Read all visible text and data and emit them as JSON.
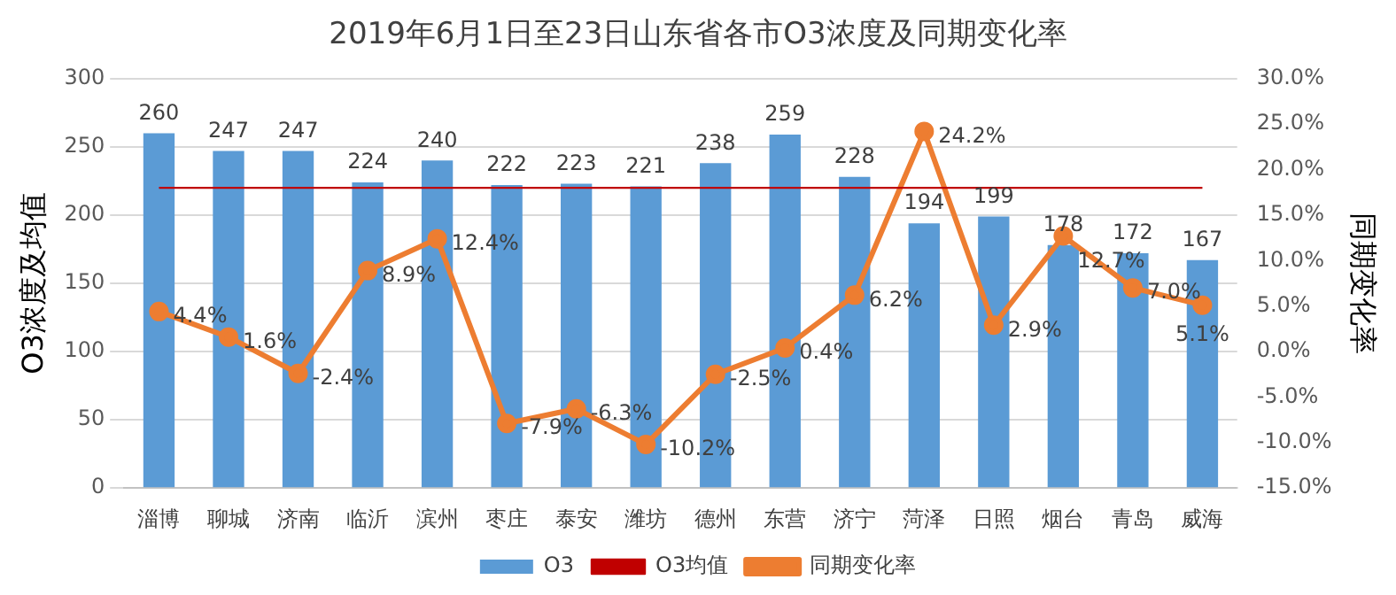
{
  "chart_data": {
    "type": "bar",
    "title": "2019年6月1日至23日山东省各市O3浓度及同期变化率",
    "ylabel": "O3浓度及均值",
    "y2label": "同期变化率",
    "categories": [
      "淄博",
      "聊城",
      "济南",
      "临沂",
      "滨州",
      "枣庄",
      "泰安",
      "潍坊",
      "德州",
      "东营",
      "济宁",
      "菏泽",
      "日照",
      "烟台",
      "青岛",
      "威海"
    ],
    "series": [
      {
        "name": "O3",
        "color": "#5b9bd5",
        "values": [
          260,
          247,
          247,
          224,
          240,
          222,
          223,
          221,
          238,
          259,
          228,
          194,
          199,
          178,
          172,
          167
        ],
        "value_labels": [
          "260",
          "247",
          "247",
          "224",
          "240",
          "222",
          "223",
          "221",
          "238",
          "259",
          "228",
          "194",
          "199",
          "178",
          "172",
          "167"
        ]
      },
      {
        "name": "O3均值",
        "type": "line",
        "color": "#c00000",
        "marker": "none",
        "values": [
          220,
          220,
          220,
          220,
          220,
          220,
          220,
          220,
          220,
          220,
          220,
          220,
          220,
          220,
          220,
          220
        ]
      },
      {
        "name": "同期变化率",
        "type": "line",
        "axis": "y2",
        "color": "#ed7d31",
        "marker": "circle",
        "values": [
          4.4,
          1.6,
          -2.4,
          8.9,
          12.4,
          -7.9,
          -6.3,
          -10.2,
          -2.5,
          0.4,
          6.2,
          24.2,
          2.9,
          12.7,
          7.0,
          5.1
        ],
        "value_labels": [
          "4.4%",
          "1.6%",
          "-2.4%",
          "8.9%",
          "12.4%",
          "-7.9%",
          "-6.3%",
          "-10.2%",
          "-2.5%",
          "0.4%",
          "6.2%",
          "24.2%",
          "2.9%",
          "12.7%",
          "7.0%",
          "5.1%"
        ]
      }
    ],
    "ylim": [
      0,
      300
    ],
    "yticks": [
      0,
      50,
      100,
      150,
      200,
      250,
      300
    ],
    "y2lim": [
      -15,
      30
    ],
    "y2ticks": [
      {
        "value": -15,
        "label": "-15.0%"
      },
      {
        "value": -10,
        "label": "-10.0%"
      },
      {
        "value": -5,
        "label": "-5.0%"
      },
      {
        "value": 0,
        "label": "0.0%"
      },
      {
        "value": 5,
        "label": "5.0%"
      },
      {
        "value": 10,
        "label": "10.0%"
      },
      {
        "value": 15,
        "label": "15.0%"
      },
      {
        "value": 20,
        "label": "20.0%"
      },
      {
        "value": 25,
        "label": "25.0%"
      },
      {
        "value": 30,
        "label": "30.0%"
      }
    ],
    "grid": "y",
    "legend": "bottom"
  }
}
